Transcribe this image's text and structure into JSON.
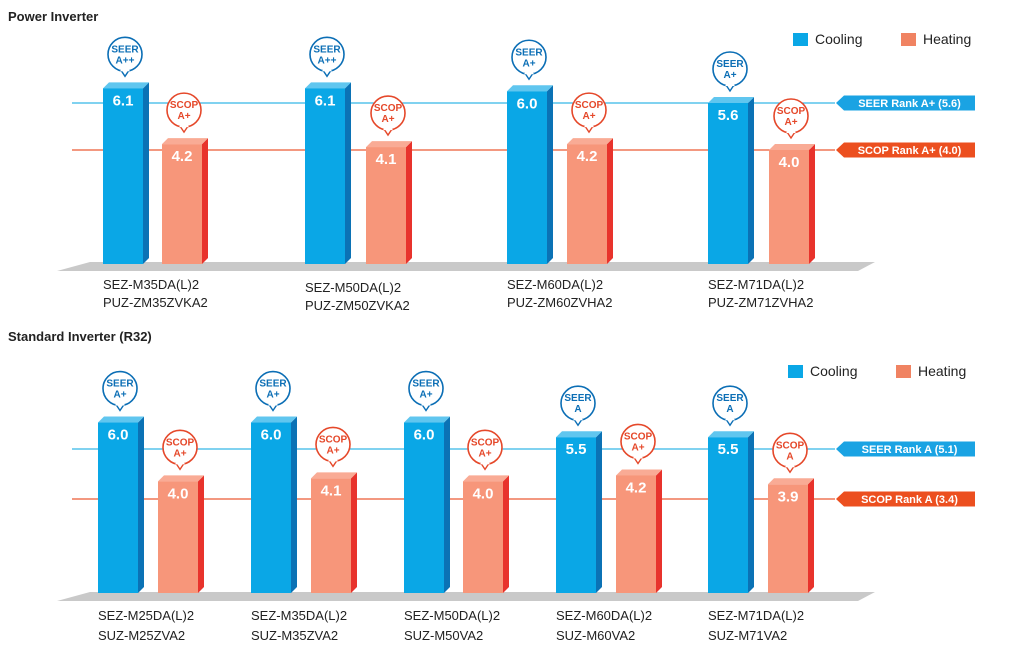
{
  "chart_data": [
    {
      "type": "bar",
      "title": "Power Inverter",
      "categories": [
        [
          "SEZ-M35DA(L)2",
          "PUZ-ZM35ZVKA2"
        ],
        [
          "SEZ-M50DA(L)2",
          "PUZ-ZM50ZVKA2"
        ],
        [
          "SEZ-M60DA(L)2",
          "PUZ-ZM60ZVHA2"
        ],
        [
          "SEZ-M71DA(L)2",
          "PUZ-ZM71ZVHA2"
        ]
      ],
      "series": [
        {
          "name": "Cooling",
          "color": "#0aa7e6",
          "values": [
            6.1,
            6.1,
            6.0,
            5.6
          ],
          "value_labels": [
            "6.1",
            "6.1",
            "6.0",
            "5.6"
          ],
          "badge_label": "SEER",
          "badges": [
            "A++",
            "A++",
            "A+",
            "A+"
          ]
        },
        {
          "name": "Heating",
          "color": "#f7967a",
          "values": [
            4.2,
            4.1,
            4.2,
            4.0
          ],
          "value_labels": [
            "4.2",
            "4.1",
            "4.2",
            "4.0"
          ],
          "badge_label": "SCOP",
          "badges": [
            "A+",
            "A+",
            "A+",
            "A+"
          ]
        }
      ],
      "reference_lines": [
        {
          "label": "SEER Rank A+ (5.6)",
          "value": 5.6,
          "color": "#35b6e8"
        },
        {
          "label": "SCOP Rank A+  (4.0)",
          "value": 4.0,
          "color": "#ec5a35"
        }
      ],
      "legend_position": "top-right",
      "grid": false
    },
    {
      "type": "bar",
      "title": "Standard Inverter (R32)",
      "categories": [
        [
          "SEZ-M25DA(L)2",
          "SUZ-M25ZVA2"
        ],
        [
          "SEZ-M35DA(L)2",
          "SUZ-M35ZVA2"
        ],
        [
          "SEZ-M50DA(L)2",
          "SUZ-M50VA2"
        ],
        [
          "SEZ-M60DA(L)2",
          "SUZ-M60VA2"
        ],
        [
          "SEZ-M71DA(L)2",
          "SUZ-M71VA2"
        ]
      ],
      "series": [
        {
          "name": "Cooling",
          "color": "#0aa7e6",
          "values": [
            6.0,
            6.0,
            6.0,
            5.5,
            5.5
          ],
          "value_labels": [
            "6.0",
            "6.0",
            "6.0",
            "5.5",
            "5.5"
          ],
          "badge_label": "SEER",
          "badges": [
            "A+",
            "A+",
            "A+",
            "A",
            "A"
          ]
        },
        {
          "name": "Heating",
          "color": "#f7967a",
          "values": [
            4.0,
            4.1,
            4.0,
            4.2,
            3.9
          ],
          "value_labels": [
            "4.0",
            "4.1",
            "4.0",
            "4.2",
            "3.9"
          ],
          "badge_label": "SCOP",
          "badges": [
            "A+",
            "A+",
            "A+",
            "A+",
            "A"
          ]
        }
      ],
      "reference_lines": [
        {
          "label": "SEER Rank A (5.1)",
          "value": 5.1,
          "color": "#35b6e8"
        },
        {
          "label": "SCOP Rank A (3.4)",
          "value": 3.4,
          "color": "#ec5a35"
        }
      ],
      "legend_position": "top-right",
      "grid": false
    }
  ]
}
